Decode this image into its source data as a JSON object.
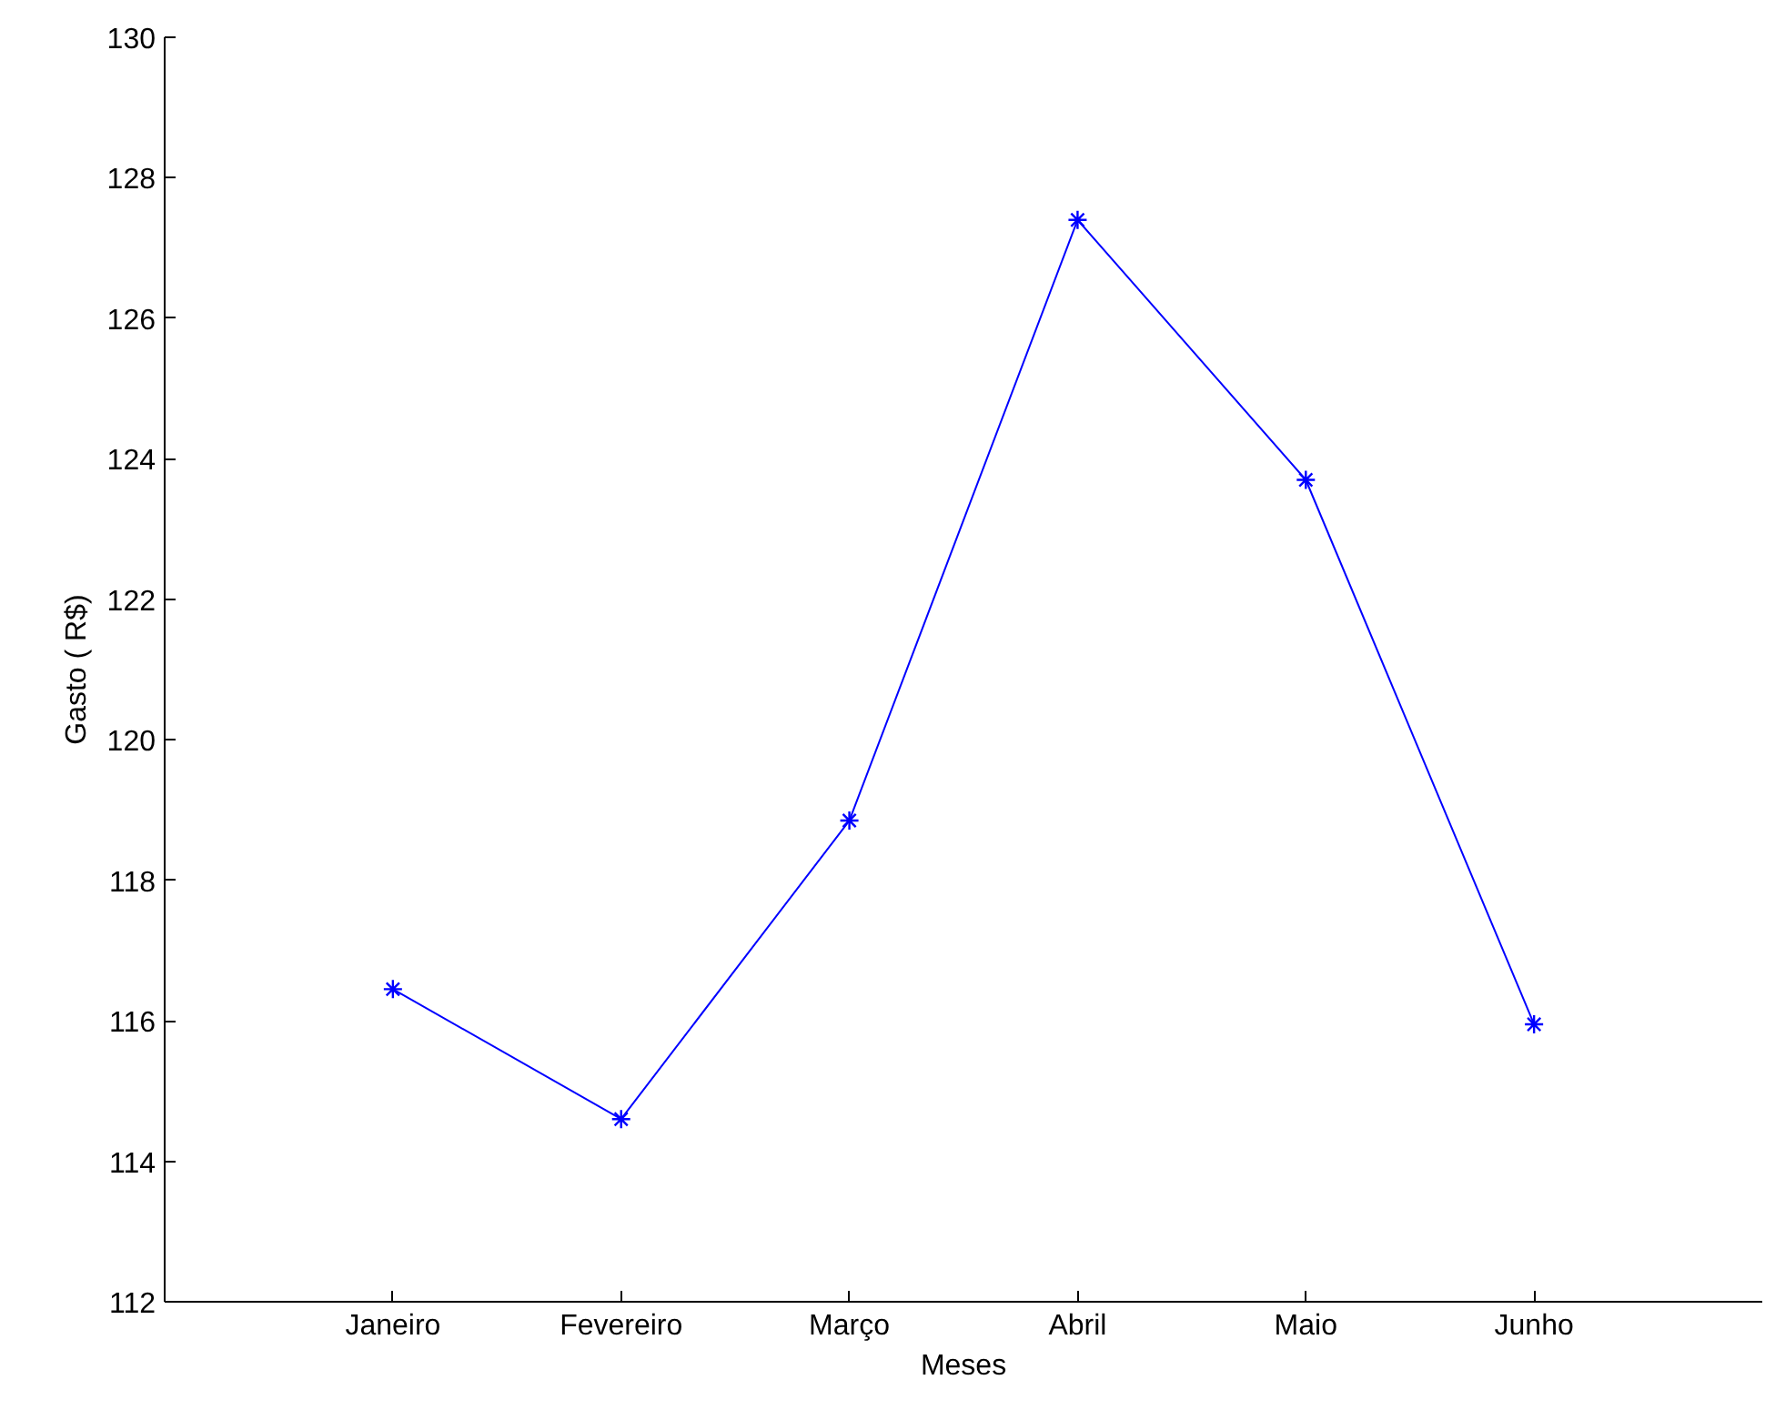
{
  "chart_data": {
    "type": "line",
    "xlabel": "Meses",
    "ylabel": "Gasto ( R$)",
    "categories": [
      "Janeiro",
      "Fevereiro",
      "Março",
      "Abril",
      "Maio",
      "Junho"
    ],
    "series": [
      {
        "color": "#0000ff",
        "values": [
          116.45,
          114.6,
          118.85,
          127.4,
          123.7,
          115.95
        ]
      }
    ],
    "ylim": [
      112,
      130
    ],
    "yticks": [
      112,
      114,
      116,
      118,
      120,
      122,
      124,
      126,
      128,
      130
    ],
    "grid": false,
    "marker": "cross",
    "line_style": "solid"
  }
}
